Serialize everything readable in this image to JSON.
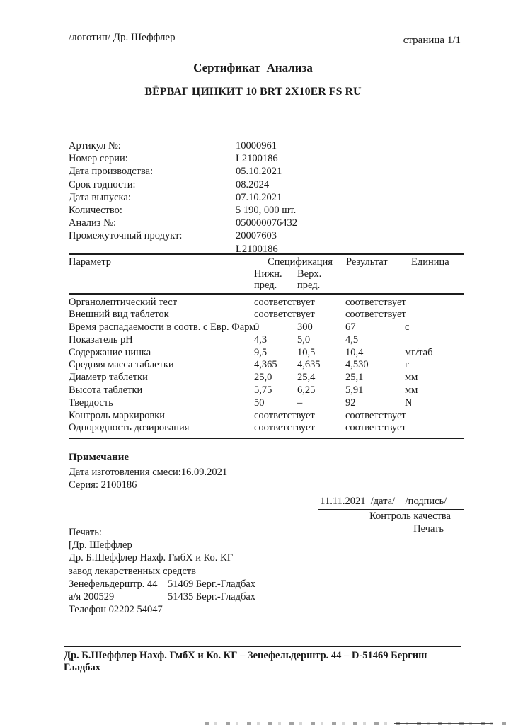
{
  "header": {
    "logo_text": "/логотип/ Др. Шеффлер",
    "page_number": "страница 1/1"
  },
  "title": "Сертификат  Анализа",
  "product_name": "ВЁРВАГ ЦИНКИТ 10 BRT 2X10ER FS RU",
  "fields": [
    {
      "label": "Артикул №:",
      "value": "10000961"
    },
    {
      "label": "Номер серии:",
      "value": "L2100186"
    },
    {
      "label": "Дата производства:",
      "value": "05.10.2021"
    },
    {
      "label": "Срок годности:",
      "value": "08.2024"
    },
    {
      "label": "Дата выпуска:",
      "value": "07.10.2021"
    },
    {
      "label": "Количество:",
      "value": "5 190, 000 шт."
    },
    {
      "label": "Анализ №:",
      "value": "050000076432"
    },
    {
      "label": "Промежуточный продукт:",
      "value": "20007603",
      "value2": "L2100186"
    }
  ],
  "table": {
    "headers": {
      "parameter": "Параметр",
      "specification": "Спецификация",
      "result": "Результат",
      "unit": "Единица",
      "lower_line1": "Нижн.",
      "upper_line1": "Верх.",
      "lower_line2": "пред.",
      "upper_line2": "пред."
    },
    "rows": [
      {
        "parameter": "Органолептический тест",
        "lower": "соответствует",
        "upper": "",
        "result": "соответствует",
        "unit": ""
      },
      {
        "parameter": "Внешний вид таблеток",
        "lower": "соответствует",
        "upper": "",
        "result": "соответствует",
        "unit": ""
      },
      {
        "parameter": "Время распадаемости в соотв. с Евр. Фарм.",
        "lower": "0",
        "upper": "300",
        "result": "67",
        "unit": "с"
      },
      {
        "parameter": "Показатель рН",
        "lower": "4,3",
        "upper": "5,0",
        "result": "4,5",
        "unit": ""
      },
      {
        "parameter": "Содержание цинка",
        "lower": "9,5",
        "upper": "10,5",
        "result": "10,4",
        "unit": "мг/таб"
      },
      {
        "parameter": "Средняя масса таблетки",
        "lower": "4,365",
        "upper": "4,635",
        "result": "4,530",
        "unit": "г"
      },
      {
        "parameter": "Диаметр таблетки",
        "lower": "25,0",
        "upper": "25,4",
        "result": "25,1",
        "unit": "мм"
      },
      {
        "parameter": "Высота таблетки",
        "lower": "5,75",
        "upper": "6,25",
        "result": "5,91",
        "unit": "мм"
      },
      {
        "parameter": "Твердость",
        "lower": "50",
        "upper": "–",
        "result": "92",
        "unit": "N"
      },
      {
        "parameter": "Контроль маркировки",
        "lower": "соответствует",
        "upper": "",
        "result": "соответствует",
        "unit": ""
      },
      {
        "parameter": "Однородность дозирования",
        "lower": "соответствует",
        "upper": "",
        "result": "соответствует",
        "unit": ""
      }
    ]
  },
  "notes": {
    "heading": "Примечание",
    "mix_date_line": "Дата изготовления смеси:16.09.2021",
    "series_line": "Серия: 2100186"
  },
  "signature": {
    "date_sign_line": "11.11.2021  /дата/    /подпись/      ",
    "role": "Контроль качества",
    "stamp_word": "Печать"
  },
  "stamp": {
    "label": "Печать:",
    "company_line1": "[Др. Шеффлер",
    "company_line2": "Др. Б.Шеффлер Нахф. ГмбХ и Ко. КГ",
    "company_line3": "завод лекарственных средств",
    "address_rows": [
      {
        "left": "Зенефельдерштр. 44",
        "right": "51469 Берг.-Гладбах"
      },
      {
        "left": "а/я 200529",
        "right": "51435 Берг.-Гладбах"
      }
    ],
    "phone": "Телефон 02202 54047"
  },
  "footer": {
    "text": "Др. Б.Шеффлер Нахф. ГмбХ и Ко. КГ – Зенефельдерштр. 44 – D-51469 Бергиш Гладбах"
  },
  "colors": {
    "ink": "#1a1a1a",
    "paper": "#ffffff"
  }
}
